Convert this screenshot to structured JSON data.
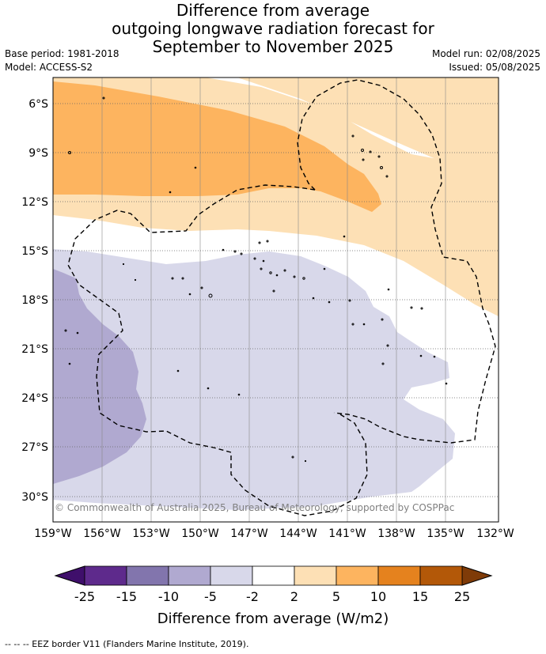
{
  "title": {
    "line1": "Difference from average",
    "line2": "outgoing longwave radiation forecast for",
    "line3": "September to November 2025"
  },
  "meta": {
    "base_period": "Base period: 1981-2018",
    "model": "Model: ACCESS-S2",
    "model_run": "Model run: 02/08/2025",
    "issued": "Issued: 05/08/2025"
  },
  "map": {
    "lat_labels": [
      "6°S",
      "9°S",
      "12°S",
      "15°S",
      "18°S",
      "21°S",
      "24°S",
      "27°S",
      "30°S"
    ],
    "lon_labels": [
      "159°W",
      "156°W",
      "153°W",
      "150°W",
      "147°W",
      "144°W",
      "141°W",
      "138°W",
      "135°W",
      "132°W"
    ],
    "copyright": "© Commonwealth of Australia 2025, Bureau of Meteorology, supported by COSPPac"
  },
  "colorbar": {
    "ticks": [
      "-25",
      "-15",
      "-10",
      "-5",
      "-2",
      "2",
      "5",
      "10",
      "15",
      "25"
    ],
    "colors": [
      "#3f0f6b",
      "#5e2a8c",
      "#8275ad",
      "#b0a9d0",
      "#d8d8ea",
      "#ffffff",
      "#fde0b5",
      "#fdb45f",
      "#e5821e",
      "#b35808",
      "#7f3b08"
    ],
    "title": "Difference from average (W/m2)"
  },
  "footer": "--  --  -- EEZ border V11 (Flanders Marine Institute, 2019)."
}
